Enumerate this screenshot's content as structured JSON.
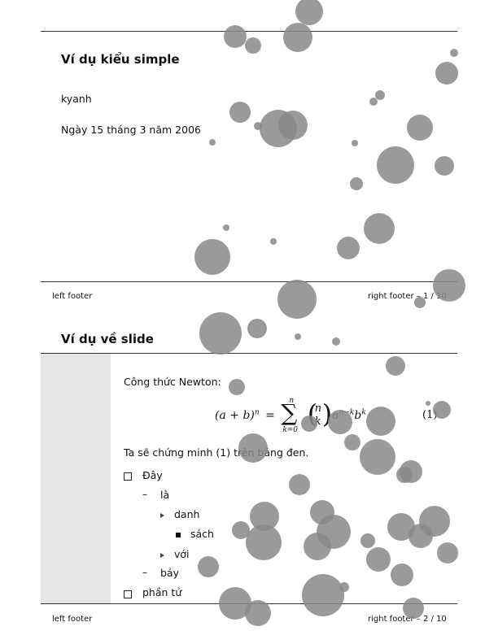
{
  "slide1": {
    "title": "Ví dụ kiểu simple",
    "author": "kyanh",
    "date": "Ngày 15 tháng 3 năm 2006",
    "footer_left": "left footer",
    "footer_right": "right footer – 1 / 10"
  },
  "slide2": {
    "title": "Ví dụ về slide",
    "formula_intro": "Công thức Newton:",
    "formula": {
      "lhs": "(a + b)",
      "lhs_exp": "n",
      "equals": "=",
      "sum_upper": "n",
      "sum_symbol": "∑",
      "sum_lower": "k=0",
      "binom_top": "n",
      "binom_bottom": "k",
      "a": "a",
      "a_exp": "n−k",
      "b": "b",
      "b_exp": "k"
    },
    "equation_number": "(1)",
    "proof_text": "Ta sẽ chứng minh (1) trên bảng đen.",
    "list": [
      "Đây",
      "là",
      "danh",
      "sách",
      "với",
      "bảy",
      "phần tử"
    ],
    "footer_left": "left footer",
    "footer_right": "right footer – 2 / 10"
  },
  "colors": {
    "bubble": "#888888",
    "sidebar": "#e6e6e6",
    "rule": "#333333"
  }
}
